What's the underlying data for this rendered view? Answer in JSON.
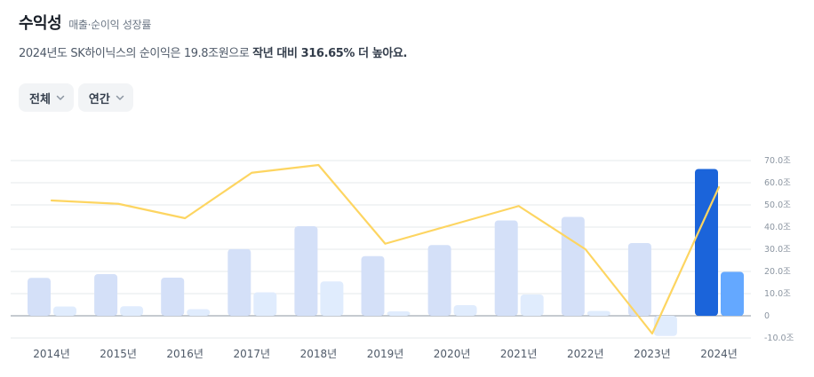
{
  "header": {
    "title": "수익성",
    "subtitle": "매출·순이익 성장률"
  },
  "summary": {
    "prefix": "2024년도 SK하이닉스의 순이익은 19.8조원으로 ",
    "highlight": "작년 대비 316.65% 더 높아요."
  },
  "filters": [
    {
      "label": "전체",
      "icon": "chevron-down-icon"
    },
    {
      "label": "연간",
      "icon": "chevron-down-icon"
    }
  ],
  "colors": {
    "revenue_bar": "#d4e0f8",
    "profit_bar": "#e0ecfd",
    "revenue_bar_highlight": "#1b64da",
    "profit_bar_highlight": "#64a8ff",
    "growth_line": "#fdd561",
    "grid": "#e5e8eb",
    "zero_line": "#8b95a1"
  },
  "chart_data": {
    "type": "bar",
    "categories": [
      "2014년",
      "2015년",
      "2016년",
      "2017년",
      "2018년",
      "2019년",
      "2020년",
      "2021년",
      "2022년",
      "2023년",
      "2024년"
    ],
    "series": [
      {
        "values": [
          17.1,
          18.8,
          17.2,
          30.1,
          40.4,
          26.9,
          31.9,
          43.0,
          44.6,
          32.8,
          66.2
        ]
      },
      {
        "values": [
          4.2,
          4.3,
          3.0,
          10.6,
          15.5,
          2.0,
          4.8,
          9.6,
          2.2,
          -9.1,
          19.8
        ]
      },
      {
        "type": "line",
        "values": [
          52,
          50.5,
          44,
          64.5,
          68,
          32.5,
          41,
          49.5,
          30,
          -8,
          58
        ]
      }
    ],
    "y_ticks": [
      "70.0조",
      "60.0조",
      "50.0조",
      "40.0조",
      "30.0조",
      "20.0조",
      "10.0조",
      "0",
      "-10.0조"
    ],
    "ylim": [
      -10,
      70
    ],
    "grid": true,
    "highlight_index": 10
  }
}
